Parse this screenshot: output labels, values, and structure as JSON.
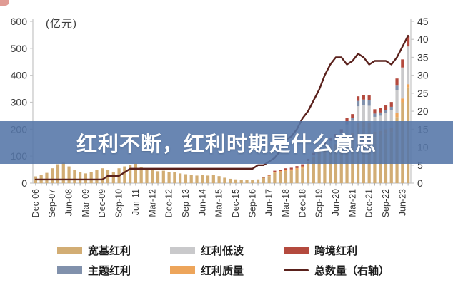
{
  "banner": {
    "title": "红利不断，红利时期是什么意思",
    "bg_color": "#5475a7",
    "text_color": "#ffffff"
  },
  "chart_data": {
    "type": "bar",
    "subtype": "stacked-bars-with-line-combo",
    "unit_label": "(亿元)",
    "left_axis": {
      "label": "(亿元)",
      "min": 0,
      "max": 600,
      "step": 100,
      "ticks": [
        0,
        100,
        200,
        300,
        400,
        500,
        600
      ]
    },
    "right_axis": {
      "label": "总数量（右轴）",
      "min": 0,
      "max": 45,
      "step": 5,
      "ticks": [
        0,
        5,
        10,
        15,
        20,
        25,
        30,
        35,
        40,
        45
      ]
    },
    "x_tick_labels": [
      "Dec-06",
      "Sep-07",
      "Jun-08",
      "Mar-09",
      "Dec-09",
      "Sep-10",
      "Jun-11",
      "Mar-12",
      "Dec-12",
      "Sep-13",
      "Jun-14",
      "Mar-15",
      "Dec-15",
      "Sep-16",
      "Jun-17",
      "Mar-18",
      "Dec-18",
      "Sep-19",
      "Jun-20",
      "Mar-21",
      "Dec-21",
      "Sep-22",
      "Jun-23"
    ],
    "categories": [
      "Dec-06",
      "Mar-07",
      "Jun-07",
      "Sep-07",
      "Dec-07",
      "Mar-08",
      "Jun-08",
      "Sep-08",
      "Dec-08",
      "Mar-09",
      "Jun-09",
      "Sep-09",
      "Dec-09",
      "Mar-10",
      "Jun-10",
      "Sep-10",
      "Dec-10",
      "Mar-11",
      "Jun-11",
      "Sep-11",
      "Dec-11",
      "Mar-12",
      "Jun-12",
      "Sep-12",
      "Dec-12",
      "Mar-13",
      "Jun-13",
      "Sep-13",
      "Dec-13",
      "Mar-14",
      "Jun-14",
      "Sep-14",
      "Dec-14",
      "Mar-15",
      "Jun-15",
      "Sep-15",
      "Dec-15",
      "Mar-16",
      "Jun-16",
      "Sep-16",
      "Dec-16",
      "Mar-17",
      "Jun-17",
      "Sep-17",
      "Dec-17",
      "Mar-18",
      "Jun-18",
      "Sep-18",
      "Dec-18",
      "Mar-19",
      "Jun-19",
      "Sep-19",
      "Dec-19",
      "Mar-20",
      "Jun-20",
      "Sep-20",
      "Dec-20",
      "Mar-21",
      "Jun-21",
      "Sep-21",
      "Dec-21",
      "Mar-22",
      "Jun-22",
      "Sep-22",
      "Dec-22",
      "Mar-23",
      "Jun-23",
      "Sep-23"
    ],
    "label_every_n": 3,
    "series": [
      {
        "name": "宽基红利",
        "type": "bar",
        "axis": "left",
        "color": "#d2ad74",
        "values": [
          25,
          30,
          38,
          55,
          70,
          76,
          62,
          50,
          42,
          36,
          42,
          50,
          55,
          48,
          42,
          55,
          62,
          68,
          72,
          60,
          52,
          48,
          44,
          46,
          42,
          40,
          36,
          33,
          30,
          28,
          30,
          28,
          30,
          26,
          20,
          16,
          14,
          13,
          12,
          12,
          14,
          20,
          26,
          38,
          41,
          45,
          46,
          50,
          55,
          70,
          85,
          102,
          110,
          122,
          130,
          140,
          160,
          168,
          205,
          208,
          205,
          175,
          178,
          184,
          190,
          245,
          300,
          355
        ]
      },
      {
        "name": "红利质量",
        "type": "bar",
        "axis": "left",
        "color": "#eda55b",
        "values": [
          0,
          0,
          0,
          0,
          0,
          0,
          0,
          0,
          0,
          0,
          0,
          0,
          0,
          0,
          0,
          0,
          0,
          0,
          0,
          0,
          0,
          0,
          0,
          0,
          0,
          0,
          0,
          0,
          0,
          0,
          0,
          0,
          0,
          0,
          0,
          0,
          0,
          0,
          0,
          0,
          0,
          0,
          2,
          4,
          4,
          5,
          5,
          6,
          7,
          8,
          10,
          12,
          13,
          14,
          15,
          16,
          18,
          18,
          20,
          20,
          20,
          16,
          16,
          16,
          16,
          16,
          14,
          12
        ]
      },
      {
        "name": "红利低波",
        "type": "bar",
        "axis": "left",
        "color": "#c9c9cb",
        "values": [
          0,
          0,
          0,
          0,
          0,
          0,
          0,
          0,
          0,
          0,
          0,
          0,
          0,
          0,
          0,
          0,
          0,
          0,
          0,
          0,
          0,
          0,
          0,
          0,
          0,
          0,
          0,
          0,
          0,
          0,
          0,
          0,
          0,
          0,
          0,
          0,
          0,
          0,
          0,
          0,
          0,
          0,
          0,
          0,
          0,
          0,
          0,
          0,
          0,
          4,
          8,
          14,
          17,
          21,
          25,
          30,
          40,
          45,
          60,
          62,
          62,
          55,
          56,
          60,
          65,
          85,
          115,
          140
        ]
      },
      {
        "name": "主题红利",
        "type": "bar",
        "axis": "left",
        "color": "#8191ac",
        "values": [
          0,
          0,
          0,
          0,
          0,
          0,
          0,
          0,
          0,
          0,
          0,
          0,
          0,
          0,
          0,
          0,
          0,
          0,
          0,
          0,
          0,
          0,
          0,
          0,
          0,
          0,
          0,
          0,
          0,
          0,
          0,
          0,
          0,
          0,
          0,
          0,
          0,
          0,
          0,
          0,
          0,
          0,
          0,
          0,
          0,
          0,
          0,
          0,
          0,
          0,
          0,
          0,
          0,
          0,
          0,
          0,
          10,
          10,
          20,
          20,
          20,
          12,
          12,
          12,
          12,
          18,
          0,
          0
        ]
      },
      {
        "name": "跨境红利",
        "type": "bar",
        "axis": "left",
        "color": "#b44a3e",
        "values": [
          0,
          0,
          0,
          0,
          0,
          0,
          0,
          0,
          0,
          0,
          0,
          0,
          0,
          0,
          0,
          0,
          0,
          0,
          0,
          0,
          0,
          0,
          0,
          0,
          0,
          0,
          0,
          0,
          0,
          0,
          0,
          0,
          0,
          0,
          0,
          0,
          0,
          0,
          0,
          0,
          0,
          2,
          2,
          4,
          5,
          5,
          6,
          7,
          8,
          8,
          9,
          10,
          10,
          11,
          12,
          14,
          15,
          15,
          17,
          17,
          18,
          16,
          16,
          16,
          18,
          24,
          30,
          38
        ]
      },
      {
        "name": "总数量（右轴）",
        "type": "line",
        "axis": "right",
        "color": "#5a211c",
        "values": [
          1,
          1,
          1,
          1,
          1,
          1,
          1,
          1,
          1,
          1,
          1,
          1,
          1,
          2,
          2,
          2,
          3,
          4,
          4,
          4,
          4,
          4,
          4,
          4,
          4,
          4,
          4,
          4,
          4,
          4,
          4,
          4,
          4,
          4,
          4,
          4,
          4,
          4,
          4,
          4,
          5,
          5,
          6,
          7,
          9,
          12,
          13,
          15,
          18,
          20,
          23,
          26,
          30,
          33,
          35,
          35,
          33,
          34,
          36,
          35,
          33,
          34,
          34,
          34,
          33,
          35,
          38,
          41
        ]
      }
    ],
    "legend": [
      {
        "label": "宽基红利",
        "color": "#d2ad74",
        "shape": "rect"
      },
      {
        "label": "红利低波",
        "color": "#c9c9cb",
        "shape": "rect"
      },
      {
        "label": "跨境红利",
        "color": "#b44a3e",
        "shape": "rect"
      },
      {
        "label": "主题红利",
        "color": "#8191ac",
        "shape": "rect"
      },
      {
        "label": "红利质量",
        "color": "#eda55b",
        "shape": "rect"
      },
      {
        "label": "总数量（右轴）",
        "color": "#5a211c",
        "shape": "line"
      }
    ],
    "legend_position": "bottom",
    "grid": false,
    "axis_color": "#c8c8c8",
    "tick_text_color": "#3a3a3a"
  }
}
